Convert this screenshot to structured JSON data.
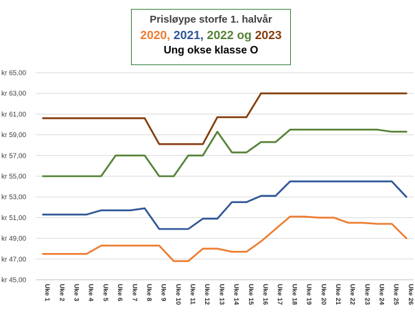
{
  "chart_data": {
    "type": "line",
    "title": "Prisløype  storfe 1. halvår",
    "subtitle_parts": [
      {
        "text": "2020, ",
        "color": "#ED7D31"
      },
      {
        "text": "2021, ",
        "color": "#2F5597"
      },
      {
        "text": "2022 og ",
        "color": "#548235"
      },
      {
        "text": "2023",
        "color": "#843C0C"
      }
    ],
    "subtitle2": "Ung okse klasse  O",
    "categories": [
      "Uke 1",
      "Uke 2",
      "Uke 3",
      "Uke 4",
      "Uke 5",
      "Uke 6",
      "Uke 7",
      "Uke 8",
      "Uke 9",
      "Uke 10",
      "Uke 11",
      "Uke 12",
      "Uke 13",
      "Uke 14",
      "Uke 15",
      "Uke 16",
      "Uke 17",
      "Uke 18",
      "Uke 19",
      "Uke 20",
      "Uke 21",
      "Uke 22",
      "Uke 23",
      "Uke 24",
      "Uke 25",
      "Uke 26"
    ],
    "ylim": [
      45,
      65
    ],
    "yticks": [
      "kr 45,00",
      "kr 47,00",
      "kr 49,00",
      "kr 51,00",
      "kr 53,00",
      "kr 55,00",
      "kr 57,00",
      "kr 59,00",
      "kr 61,00",
      "kr 63,00",
      "kr 65,00"
    ],
    "grid": true,
    "series": [
      {
        "color": "#ED7D31",
        "values": [
          47.5,
          47.5,
          47.5,
          47.5,
          48.3,
          48.3,
          48.3,
          48.3,
          48.3,
          46.8,
          46.8,
          48.0,
          48.0,
          47.7,
          47.7,
          48.7,
          49.9,
          51.1,
          51.1,
          51.0,
          51.0,
          50.5,
          50.5,
          50.4,
          50.4,
          49.0
        ]
      },
      {
        "color": "#2F5597",
        "values": [
          51.3,
          51.3,
          51.3,
          51.3,
          51.7,
          51.7,
          51.7,
          51.9,
          49.9,
          49.9,
          49.9,
          50.9,
          50.9,
          52.5,
          52.5,
          53.1,
          53.1,
          54.5,
          54.5,
          54.5,
          54.5,
          54.5,
          54.5,
          54.5,
          54.5,
          53.0
        ]
      },
      {
        "color": "#548235",
        "values": [
          55.0,
          55.0,
          55.0,
          55.0,
          55.0,
          57.0,
          57.0,
          57.0,
          55.0,
          55.0,
          57.0,
          57.0,
          59.3,
          57.3,
          57.3,
          58.3,
          58.3,
          59.5,
          59.5,
          59.5,
          59.5,
          59.5,
          59.5,
          59.5,
          59.3,
          59.3
        ]
      },
      {
        "color": "#843C0C",
        "values": [
          60.6,
          60.6,
          60.6,
          60.6,
          60.6,
          60.6,
          60.6,
          60.6,
          58.1,
          58.1,
          58.1,
          58.1,
          60.7,
          60.7,
          60.7,
          63.0,
          63.0,
          63.0,
          63.0,
          63.0,
          63.0,
          63.0,
          63.0,
          63.0,
          63.0,
          63.0
        ]
      }
    ]
  }
}
